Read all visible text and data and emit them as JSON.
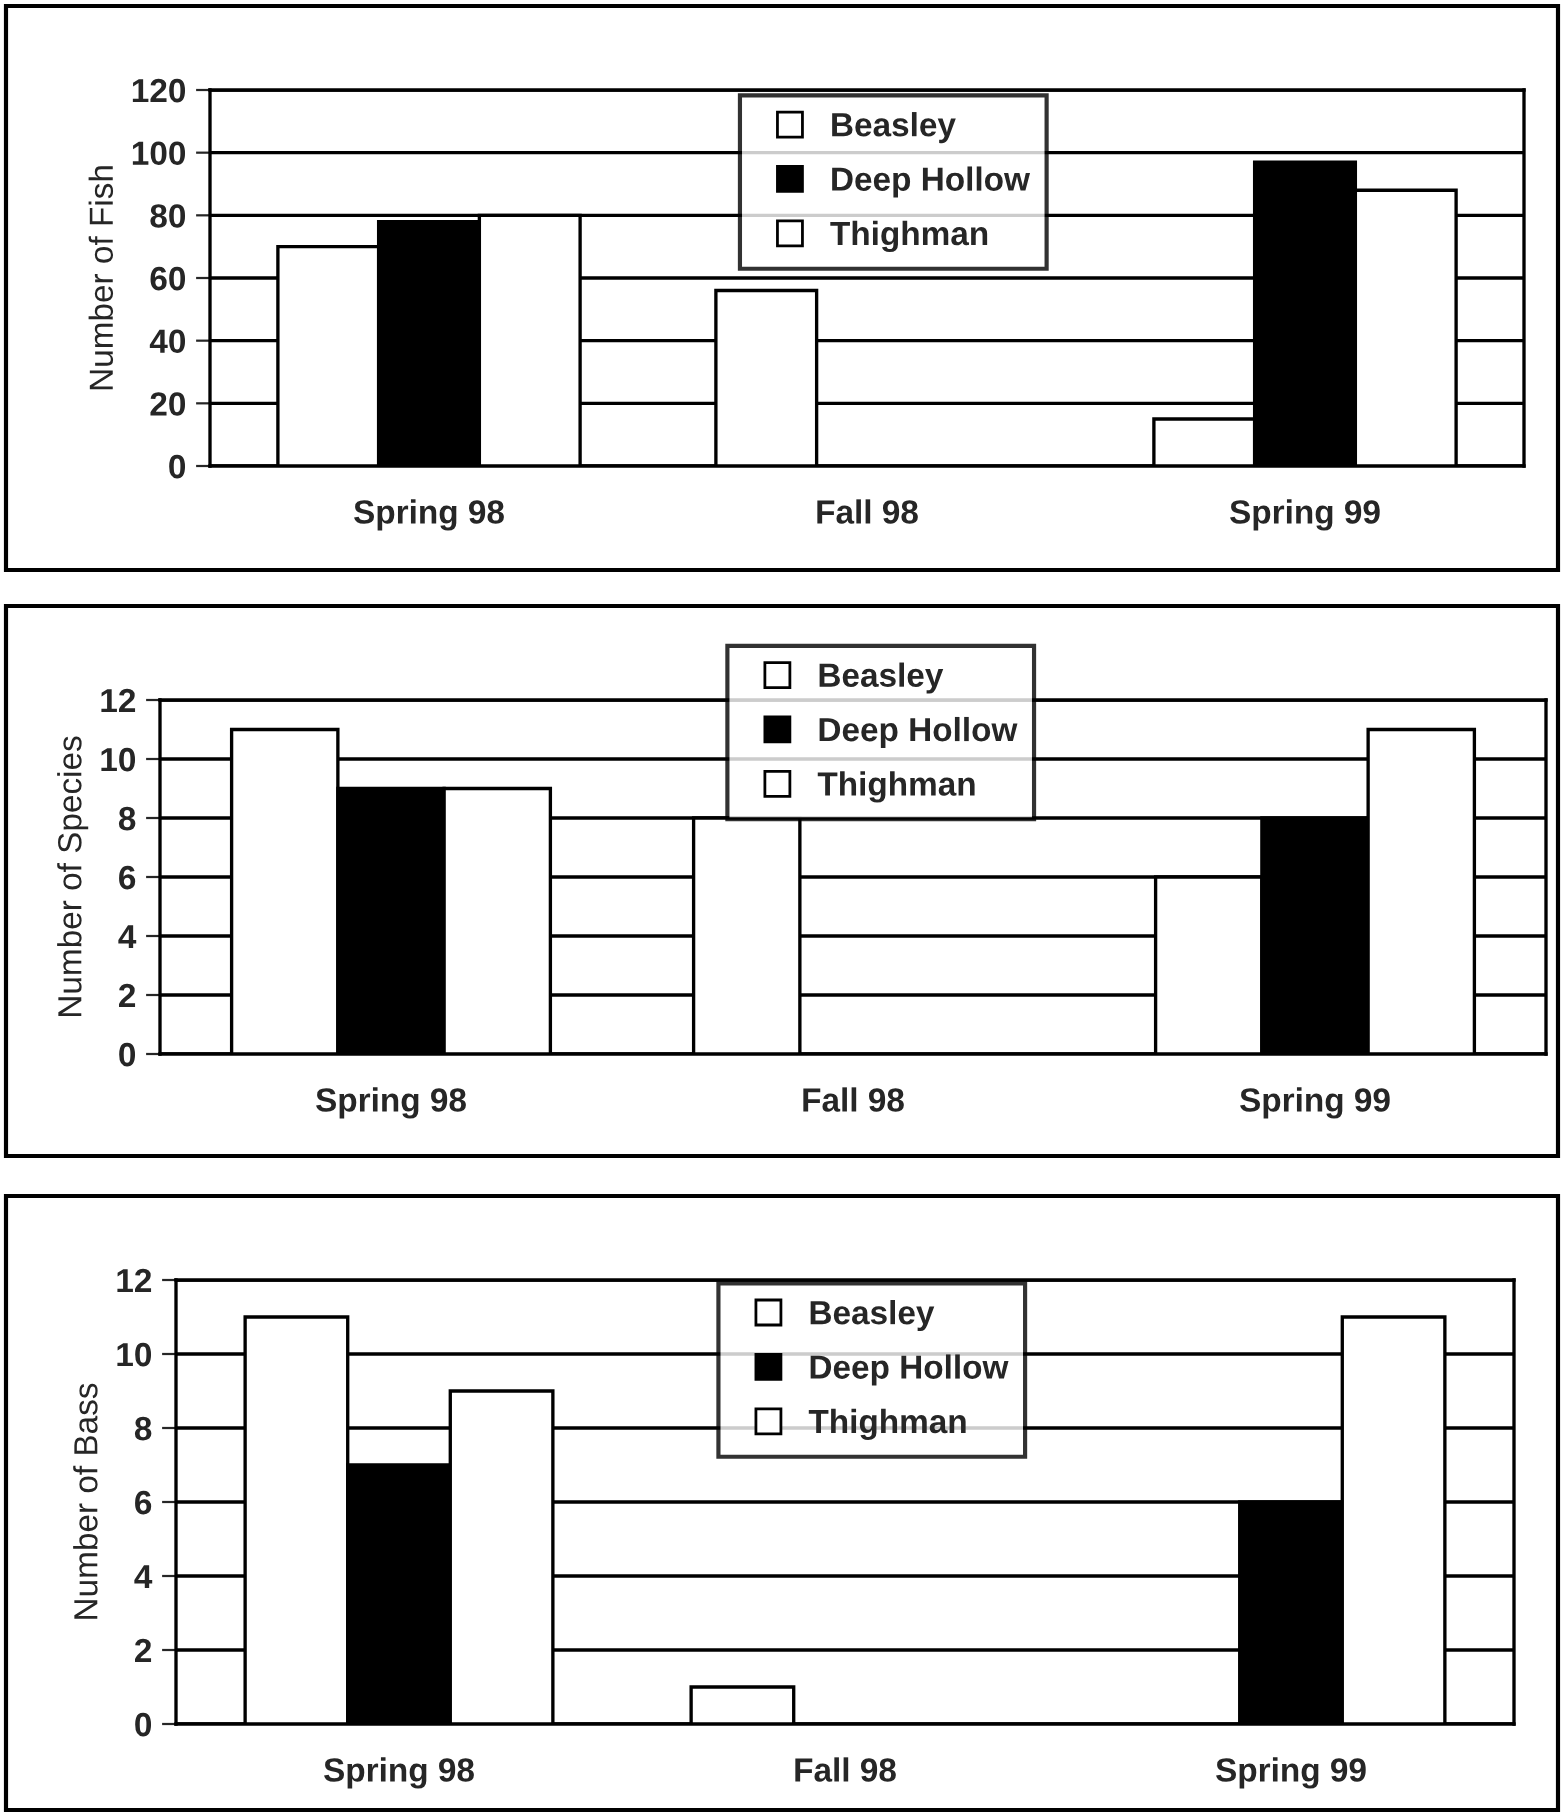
{
  "chart_data": [
    {
      "type": "bar",
      "ylabel": "Number of Fish",
      "categories": [
        "Spring 98",
        "Fall 98",
        "Spring 99"
      ],
      "series": [
        {
          "name": "Beasley",
          "color": "#ffffff",
          "values": [
            70,
            56,
            15
          ]
        },
        {
          "name": "Deep Hollow",
          "color": "#000000",
          "values": [
            78,
            null,
            97
          ]
        },
        {
          "name": "Thighman",
          "color": "#ffffff",
          "values": [
            80,
            null,
            88
          ]
        }
      ],
      "ylim": [
        0,
        120
      ],
      "yticks": [
        0,
        20,
        40,
        60,
        80,
        100,
        120
      ],
      "grid": "y",
      "legend": "top"
    },
    {
      "type": "bar",
      "ylabel": "Number of Species",
      "categories": [
        "Spring 98",
        "Fall 98",
        "Spring 99"
      ],
      "series": [
        {
          "name": "Beasley",
          "color": "#ffffff",
          "values": [
            11,
            8,
            6
          ]
        },
        {
          "name": "Deep Hollow",
          "color": "#000000",
          "values": [
            9,
            null,
            8
          ]
        },
        {
          "name": "Thighman",
          "color": "#ffffff",
          "values": [
            9,
            null,
            11
          ]
        }
      ],
      "ylim": [
        0,
        12
      ],
      "yticks": [
        0,
        2,
        4,
        6,
        8,
        10,
        12
      ],
      "grid": "y",
      "legend": "top"
    },
    {
      "type": "bar",
      "ylabel": "Number of Bass",
      "categories": [
        "Spring 98",
        "Fall 98",
        "Spring 99"
      ],
      "series": [
        {
          "name": "Beasley",
          "color": "#ffffff",
          "values": [
            11,
            1,
            null
          ]
        },
        {
          "name": "Deep Hollow",
          "color": "#000000",
          "values": [
            7,
            null,
            6
          ]
        },
        {
          "name": "Thighman",
          "color": "#ffffff",
          "values": [
            9,
            null,
            11
          ]
        }
      ],
      "ylim": [
        0,
        12
      ],
      "yticks": [
        0,
        2,
        4,
        6,
        8,
        10,
        12
      ],
      "grid": "y",
      "legend": "top"
    }
  ]
}
